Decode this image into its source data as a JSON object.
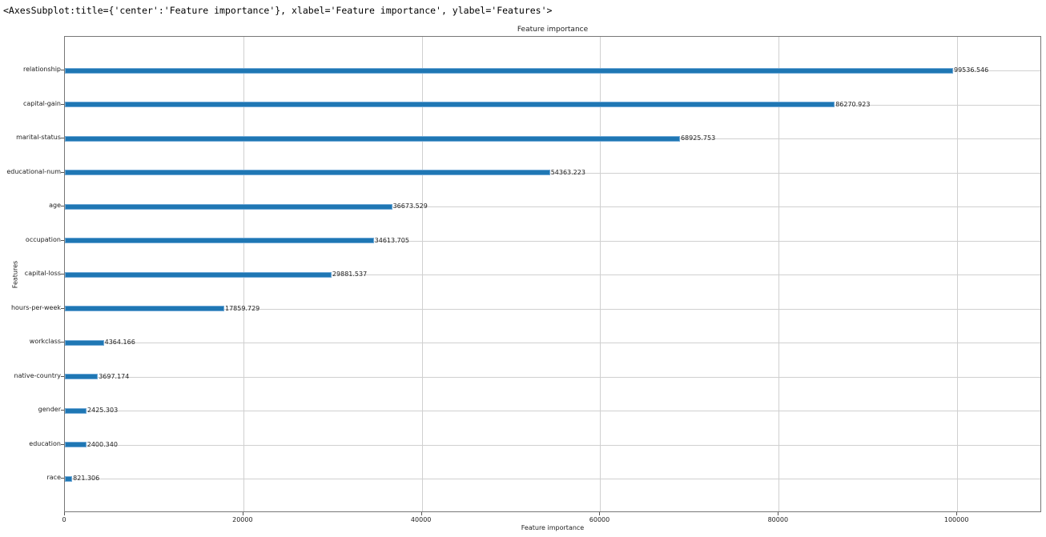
{
  "output_repr": "<AxesSubplot:title={'center':'Feature importance'}, xlabel='Feature importance', ylabel='Features'>",
  "chart_data": {
    "type": "bar",
    "orientation": "horizontal",
    "title": "Feature importance",
    "xlabel": "Feature importance",
    "ylabel": "Features",
    "xlim": [
      0,
      109500
    ],
    "grid": true,
    "bar_color": "#1f77b4",
    "xticks": [
      0,
      20000,
      40000,
      60000,
      80000,
      100000
    ],
    "xtick_labels": [
      "0",
      "20000",
      "40000",
      "60000",
      "80000",
      "100000"
    ],
    "categories": [
      "relationship",
      "capital-gain",
      "marital-status",
      "educational-num",
      "age",
      "occupation",
      "capital-loss",
      "hours-per-week",
      "workclass",
      "native-country",
      "gender",
      "education",
      "race"
    ],
    "values": [
      99536.546,
      86270.923,
      68925.753,
      54363.223,
      36673.529,
      34613.705,
      29881.537,
      17859.729,
      4364.166,
      3697.174,
      2425.303,
      2400.34,
      821.306
    ],
    "value_labels": [
      "99536.546",
      "86270.923",
      "68925.753",
      "54363.223",
      "36673.529",
      "34613.705",
      "29881.537",
      "17859.729",
      "4364.166",
      "3697.174",
      "2425.303",
      "2400.340",
      "821.306"
    ]
  }
}
